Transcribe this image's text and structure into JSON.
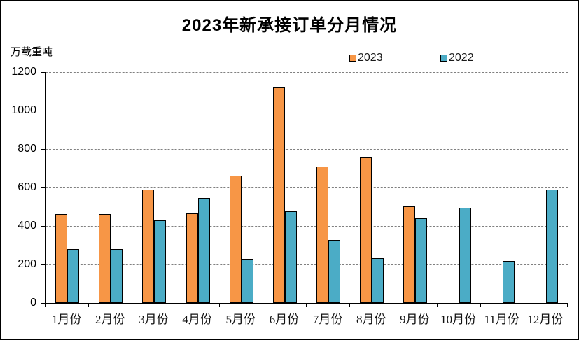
{
  "frame": {
    "background": "#ffffff",
    "border_color": "#000000"
  },
  "chart_data": {
    "type": "bar",
    "title": "2023年新承接订单分月情况",
    "ylabel": "万载重吨",
    "xlabel": "",
    "categories": [
      "1月份",
      "2月份",
      "3月份",
      "4月份",
      "5月份",
      "6月份",
      "7月份",
      "8月份",
      "9月份",
      "10月份",
      "11月份",
      "12月份"
    ],
    "series": [
      {
        "name": "2023",
        "color": "#F79646",
        "values": [
          460,
          463,
          590,
          465,
          660,
          1120,
          710,
          755,
          500,
          null,
          null,
          null
        ]
      },
      {
        "name": "2022",
        "color": "#4BACC6",
        "values": [
          280,
          280,
          428,
          545,
          230,
          475,
          328,
          233,
          440,
          494,
          218,
          590
        ]
      }
    ],
    "ylim": [
      0,
      1200
    ],
    "ytick_step": 200,
    "yticks": [
      "0",
      "200",
      "400",
      "600",
      "800",
      "1000",
      "1200"
    ],
    "grid": "horizontal-dashed",
    "gridline_color": "#7f7f7f",
    "bar_border_color": "#000000",
    "legend_position": "top-center"
  }
}
